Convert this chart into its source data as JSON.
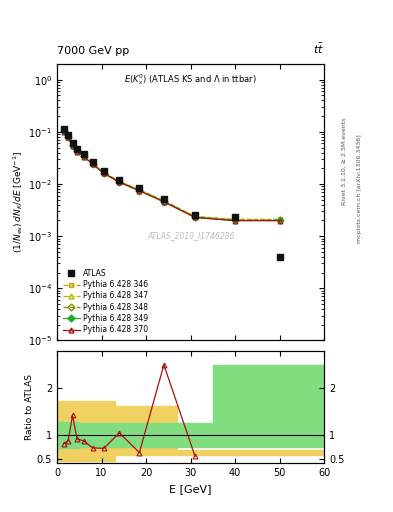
{
  "atlas_x": [
    1.5,
    2.5,
    3.5,
    4.5,
    6.0,
    8.0,
    10.5,
    14.0,
    18.5,
    24.0,
    31.0,
    40.0,
    50.0
  ],
  "atlas_y": [
    0.115,
    0.088,
    0.06,
    0.047,
    0.038,
    0.027,
    0.018,
    0.012,
    0.0085,
    0.0052,
    0.0026,
    0.0023,
    0.0004
  ],
  "mc_x": [
    1.5,
    2.5,
    3.5,
    4.5,
    6.0,
    8.0,
    10.5,
    14.0,
    18.5,
    24.0,
    31.0,
    40.0,
    50.0
  ],
  "mc_y_346": [
    0.105,
    0.082,
    0.057,
    0.044,
    0.036,
    0.025,
    0.0168,
    0.0112,
    0.0078,
    0.0048,
    0.0024,
    0.0021,
    0.0021
  ],
  "mc_y_347": [
    0.104,
    0.081,
    0.056,
    0.043,
    0.035,
    0.0248,
    0.0166,
    0.0111,
    0.0077,
    0.0047,
    0.00235,
    0.00205,
    0.00205
  ],
  "mc_y_348": [
    0.103,
    0.08,
    0.055,
    0.043,
    0.0345,
    0.0245,
    0.0165,
    0.011,
    0.0076,
    0.00465,
    0.00232,
    0.00202,
    0.00202
  ],
  "mc_y_349": [
    0.102,
    0.079,
    0.0545,
    0.0425,
    0.034,
    0.0242,
    0.0163,
    0.0109,
    0.0075,
    0.0046,
    0.0023,
    0.002,
    0.002
  ],
  "mc_y_370": [
    0.101,
    0.078,
    0.054,
    0.042,
    0.0335,
    0.024,
    0.016,
    0.0108,
    0.0074,
    0.00455,
    0.00228,
    0.00198,
    0.00198
  ],
  "ratio_x": [
    1.5,
    2.5,
    3.5,
    4.5,
    6.0,
    8.0,
    10.5,
    14.0,
    18.5,
    24.0,
    31.0
  ],
  "ratio_y": [
    0.82,
    0.88,
    1.42,
    0.92,
    0.88,
    0.73,
    0.72,
    1.05,
    0.63,
    2.5,
    0.55
  ],
  "yband1_edges": [
    0,
    5,
    5,
    13,
    13,
    27,
    27,
    60
  ],
  "yband1_lo": [
    0.45,
    0.45,
    0.45,
    0.45,
    0.58,
    0.58,
    0.58,
    0.58
  ],
  "yband1_hi": [
    1.72,
    1.72,
    1.72,
    1.72,
    1.62,
    1.62,
    0.68,
    0.68
  ],
  "yband2_edges": [
    0,
    5,
    5,
    13,
    13,
    35,
    35,
    60
  ],
  "yband2_lo": [
    0.72,
    0.72,
    0.75,
    0.75,
    0.75,
    0.75,
    0.75,
    0.75
  ],
  "yband2_hi": [
    1.28,
    1.28,
    1.25,
    1.25,
    1.25,
    1.25,
    2.5,
    2.5
  ],
  "xlim": [
    0,
    60
  ],
  "ylim_main": [
    1e-05,
    2.0
  ],
  "ylim_ratio": [
    0.4,
    2.8
  ],
  "color_atlas": "#111111",
  "color_346": "#c8a000",
  "color_347": "#b8b800",
  "color_348": "#889000",
  "color_349": "#22aa22",
  "color_370": "#aa1111",
  "color_yellow": "#f0d060",
  "color_green": "#80dd80"
}
